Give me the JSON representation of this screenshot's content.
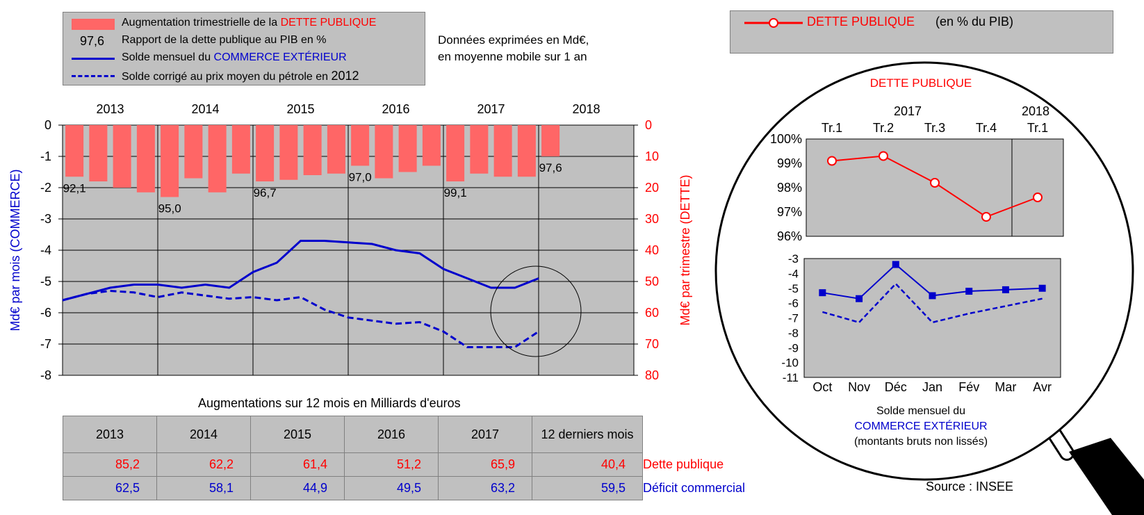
{
  "legend_left": {
    "bar_label_prefix": "Augmentation trimestrielle de la ",
    "bar_label_highlight": "DETTE PUBLIQUE",
    "ratio_sample": "97,6",
    "ratio_label": "Rapport de la dette publique au PIB en %",
    "solid_label_prefix": "Solde mensuel du ",
    "solid_label_highlight": "COMMERCE EXTÉRIEUR",
    "dashed_label": "Solde corrigé au prix moyen du pétrole en",
    "dashed_year": "2012"
  },
  "note": {
    "line1": "Données exprimées en Md€,",
    "line2": "en moyenne mobile sur 1 an"
  },
  "legend_right": {
    "label": "DETTE PUBLIQUE",
    "suffix": "(en % du PIB)"
  },
  "colors": {
    "bar": "#ff6666",
    "debt_red": "#ff0000",
    "trade_blue": "#0000cc",
    "plot_bg": "#c0c0c0"
  },
  "chart_data": [
    {
      "type": "bar",
      "id": "main",
      "years": [
        "2013",
        "2014",
        "2015",
        "2016",
        "2017",
        "2018"
      ],
      "ylabel_left": "Md€ par mois (COMMERCE)",
      "ylabel_right": "Md€ par trimestre (DETTE)",
      "yticks_left": [
        "0",
        "-1",
        "-2",
        "-3",
        "-4",
        "-5",
        "-6",
        "-7",
        "-8"
      ],
      "yticks_right": [
        "0",
        "10",
        "20",
        "30",
        "40",
        "50",
        "60",
        "70",
        "80"
      ],
      "ylim_left": [
        -8,
        0
      ],
      "ylim_right": [
        80,
        0
      ],
      "quarterly_debt_increase": [
        16.5,
        18,
        20,
        21.5,
        23,
        17,
        21.5,
        15.5,
        18,
        17.5,
        16,
        15.5,
        13,
        17,
        15,
        13,
        18,
        15.5,
        16.5,
        16.5,
        10
      ],
      "ratio_labels": [
        {
          "q": 0,
          "text": "92,1"
        },
        {
          "q": 4,
          "text": "95,0"
        },
        {
          "q": 8,
          "text": "96,7"
        },
        {
          "q": 12,
          "text": "97,0"
        },
        {
          "q": 16,
          "text": "99,1"
        },
        {
          "q": 20,
          "text": "97,6"
        }
      ],
      "trade_balance_solid": [
        [
          2013.0,
          -5.6
        ],
        [
          2013.25,
          -5.4
        ],
        [
          2013.5,
          -5.2
        ],
        [
          2013.75,
          -5.1
        ],
        [
          2014.0,
          -5.1
        ],
        [
          2014.25,
          -5.2
        ],
        [
          2014.5,
          -5.1
        ],
        [
          2014.75,
          -5.2
        ],
        [
          2015.0,
          -4.7
        ],
        [
          2015.25,
          -4.4
        ],
        [
          2015.5,
          -3.7
        ],
        [
          2015.75,
          -3.7
        ],
        [
          2016.0,
          -3.75
        ],
        [
          2016.25,
          -3.8
        ],
        [
          2016.5,
          -4.0
        ],
        [
          2016.75,
          -4.1
        ],
        [
          2017.0,
          -4.6
        ],
        [
          2017.25,
          -4.9
        ],
        [
          2017.5,
          -5.2
        ],
        [
          2017.75,
          -5.2
        ],
        [
          2018.0,
          -4.9
        ]
      ],
      "trade_balance_oil_corrected": [
        [
          2013.0,
          -5.6
        ],
        [
          2013.25,
          -5.4
        ],
        [
          2013.5,
          -5.3
        ],
        [
          2013.75,
          -5.35
        ],
        [
          2014.0,
          -5.5
        ],
        [
          2014.25,
          -5.35
        ],
        [
          2014.5,
          -5.45
        ],
        [
          2014.75,
          -5.55
        ],
        [
          2015.0,
          -5.5
        ],
        [
          2015.25,
          -5.6
        ],
        [
          2015.5,
          -5.5
        ],
        [
          2015.75,
          -5.9
        ],
        [
          2016.0,
          -6.15
        ],
        [
          2016.25,
          -6.25
        ],
        [
          2016.5,
          -6.35
        ],
        [
          2016.75,
          -6.3
        ],
        [
          2017.0,
          -6.6
        ],
        [
          2017.25,
          -7.1
        ],
        [
          2017.5,
          -7.1
        ],
        [
          2017.75,
          -7.1
        ],
        [
          2018.0,
          -6.6
        ]
      ]
    },
    {
      "type": "line",
      "id": "zoom_debt",
      "title": "DETTE PUBLIQUE",
      "year_top_1": "2017",
      "year_top_2": "2018",
      "categories": [
        "Tr.1",
        "Tr.2",
        "Tr.3",
        "Tr.4",
        "Tr.1"
      ],
      "yticks": [
        "100%",
        "99%",
        "98%",
        "97%",
        "96%"
      ],
      "ylim": [
        96,
        100
      ],
      "values": [
        99.1,
        99.3,
        98.2,
        96.8,
        97.6
      ]
    },
    {
      "type": "line",
      "id": "zoom_trade",
      "categories": [
        "Oct",
        "Nov",
        "Déc",
        "Jan",
        "Fév",
        "Mar",
        "Avr"
      ],
      "yticks": [
        "-3",
        "-4",
        "-5",
        "-6",
        "-7",
        "-8",
        "-9",
        "-10",
        "-11"
      ],
      "ylim": [
        -11,
        -3
      ],
      "series": [
        {
          "values": [
            -5.3,
            -5.7,
            -3.4,
            -5.5,
            -5.2,
            -5.1,
            -5.0
          ]
        },
        {
          "values": [
            -6.6,
            -7.3,
            -4.7,
            -7.3,
            -6.7,
            -6.2,
            -5.7
          ]
        }
      ],
      "caption_line1": "Solde mensuel du",
      "caption_line2": "COMMERCE EXTÉRIEUR",
      "caption_line3": "(montants bruts non lissés)"
    }
  ],
  "table": {
    "title": "Augmentations sur 12 mois en Milliards d'euros",
    "headers": [
      "2013",
      "2014",
      "2015",
      "2016",
      "2017",
      "12 derniers mois"
    ],
    "rows": [
      {
        "label": "Dette publique",
        "values": [
          "85,2",
          "62,2",
          "61,4",
          "51,2",
          "65,9",
          "40,4"
        ]
      },
      {
        "label": "Déficit commercial",
        "values": [
          "62,5",
          "58,1",
          "44,9",
          "49,5",
          "63,2",
          "59,5"
        ]
      }
    ]
  },
  "source": "Source : INSEE"
}
